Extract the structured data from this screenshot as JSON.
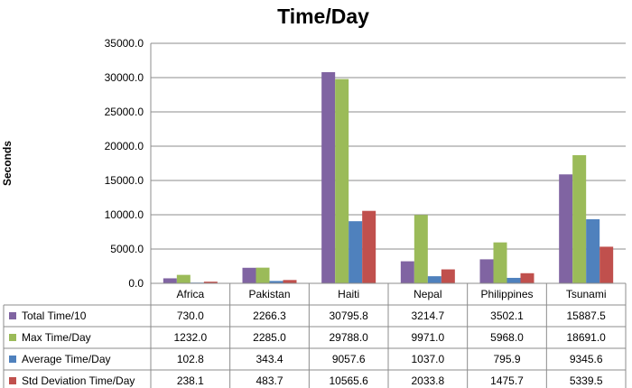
{
  "chart_data": {
    "type": "bar",
    "title": "Time/Day",
    "xlabel": "",
    "ylabel": "Seconds",
    "ylim": [
      0,
      35000
    ],
    "yticks": [
      "0.0",
      "5000.0",
      "10000.0",
      "15000.0",
      "20000.0",
      "25000.0",
      "30000.0",
      "35000.0"
    ],
    "grid": true,
    "legend": "data-table",
    "categories": [
      "Africa",
      "Pakistan",
      "Haiti",
      "Nepal",
      "Philippines",
      "Tsunami"
    ],
    "series": [
      {
        "name": "Total Time/10",
        "color": "#8064A2",
        "values": [
          730.0,
          2266.3,
          30795.8,
          3214.7,
          3502.1,
          15887.5
        ],
        "labels": [
          "730.0",
          "2266.3",
          "30795.8",
          "3214.7",
          "3502.1",
          "15887.5"
        ]
      },
      {
        "name": "Max Time/Day",
        "color": "#9BBB59",
        "values": [
          1232.0,
          2285.0,
          29788.0,
          9971.0,
          5968.0,
          18691.0
        ],
        "labels": [
          "1232.0",
          "2285.0",
          "29788.0",
          "9971.0",
          "5968.0",
          "18691.0"
        ]
      },
      {
        "name": "Average Time/Day",
        "color": "#4F81BD",
        "values": [
          102.8,
          343.4,
          9057.6,
          1037.0,
          795.9,
          9345.6
        ],
        "labels": [
          "102.8",
          "343.4",
          "9057.6",
          "1037.0",
          "795.9",
          "9345.6"
        ]
      },
      {
        "name": "Std Deviation Time/Day",
        "color": "#C0504D",
        "values": [
          238.1,
          483.7,
          10565.6,
          2033.8,
          1475.7,
          5339.5
        ],
        "labels": [
          "238.1",
          "483.7",
          "10565.6",
          "2033.8",
          "1475.7",
          "5339.5"
        ]
      }
    ]
  }
}
